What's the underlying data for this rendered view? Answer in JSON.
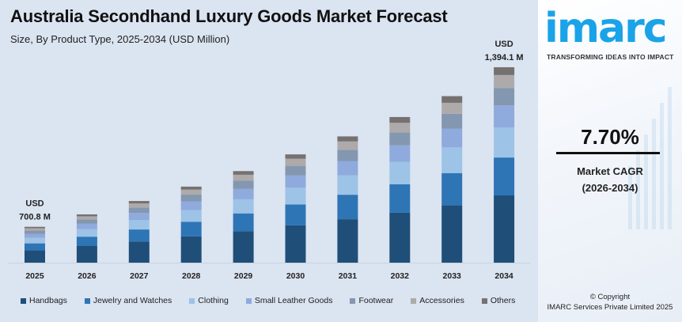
{
  "header": {
    "title": "Australia Secondhand Luxury Goods Market Forecast",
    "subtitle": "Size, By Product Type, 2025-2034 (USD Million)"
  },
  "chart_data": {
    "type": "bar",
    "stacked": true,
    "title": "Australia Secondhand Luxury Goods Market Forecast",
    "subtitle": "Size, By Product Type, 2025-2034 (USD Million)",
    "xlabel": "",
    "ylabel": "USD Million",
    "categories": [
      "2025",
      "2026",
      "2027",
      "2028",
      "2029",
      "2030",
      "2031",
      "2032",
      "2033",
      "2034"
    ],
    "totals": [
      700.8,
      754.8,
      812.9,
      875.5,
      942.9,
      1015.5,
      1093.7,
      1177.9,
      1268.6,
      1394.1
    ],
    "annotations": [
      {
        "category": "2025",
        "line1": "USD",
        "line2": "700.8 M"
      },
      {
        "category": "2034",
        "line1": "USD",
        "line2": "1,394.1 M"
      }
    ],
    "series": [
      {
        "name": "Handbags",
        "color": "#1f4e79",
        "values": [
          241.1,
          259.7,
          279.6,
          301.2,
          324.4,
          349.3,
          376.2,
          405.2,
          436.4,
          479.6
        ]
      },
      {
        "name": "Jewelry and Watches",
        "color": "#2e75b6",
        "values": [
          136.0,
          146.4,
          157.7,
          169.8,
          182.9,
          197.0,
          212.2,
          228.5,
          246.1,
          270.5
        ]
      },
      {
        "name": "Clothing",
        "color": "#9dc3e6",
        "values": [
          107.9,
          116.2,
          125.2,
          134.8,
          145.2,
          156.4,
          168.4,
          181.4,
          195.4,
          214.7
        ]
      },
      {
        "name": "Small Leather Goods",
        "color": "#8faadc",
        "values": [
          79.2,
          85.3,
          91.9,
          98.9,
          106.5,
          114.8,
          123.6,
          133.1,
          143.4,
          157.5
        ]
      },
      {
        "name": "Footwear",
        "color": "#8497b0",
        "values": [
          62.4,
          67.2,
          72.3,
          77.9,
          83.9,
          90.4,
          97.3,
          104.8,
          112.9,
          124.1
        ]
      },
      {
        "name": "Accessories",
        "color": "#aeaaaa",
        "values": [
          46.3,
          49.8,
          53.7,
          57.8,
          62.2,
          67.0,
          72.2,
          77.7,
          83.7,
          92.0
        ]
      },
      {
        "name": "Others",
        "color": "#767171",
        "values": [
          28.0,
          30.2,
          32.5,
          35.0,
          37.7,
          40.6,
          43.7,
          47.1,
          50.7,
          55.8
        ]
      }
    ],
    "legend_position": "bottom",
    "grid": false
  },
  "sidebar": {
    "logo_text": "imarc",
    "tagline": "TRANSFORMING IDEAS INTO IMPACT",
    "cagr_value": "7.70%",
    "cagr_label": "Market CAGR",
    "cagr_period": "(2026-2034)",
    "copyright_line1": "© Copyright",
    "copyright_line2": "IMARC Services Private Limited 2025"
  }
}
